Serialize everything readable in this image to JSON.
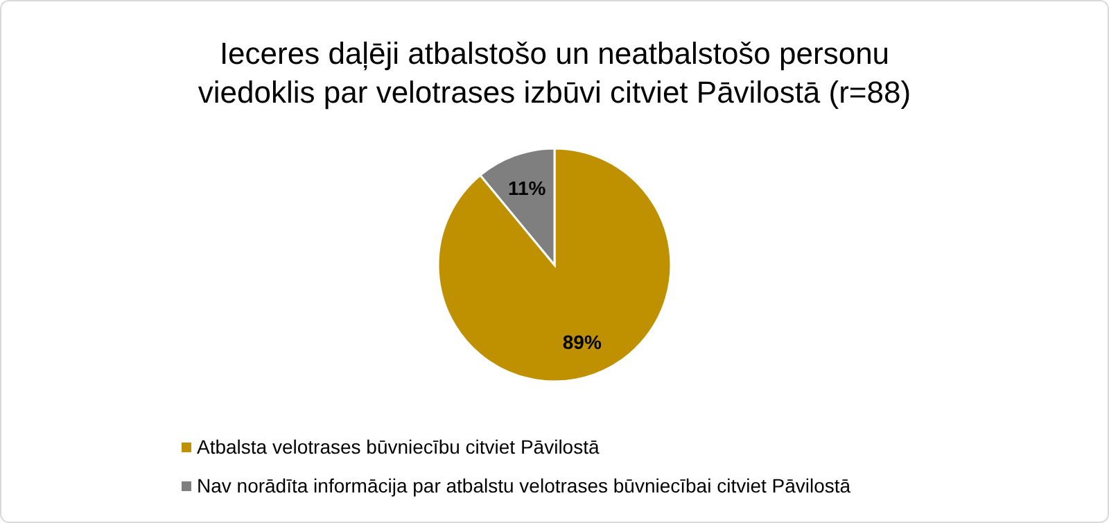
{
  "chart_data": {
    "type": "pie",
    "title": "Ieceres daļēji atbalstošo un neatbalstošo personu viedoklis par velotrases izbūvi citviet Pāvilostā (r=88)",
    "categories": [
      "Atbalsta velotrases būvniecību citviet Pāvilostā",
      "Nav norādīta informācija par atbalstu velotrases būvniecībai citviet Pāvilostā"
    ],
    "values": [
      89,
      11
    ],
    "colors": [
      "#bf9000",
      "#7f7f7f"
    ],
    "value_labels": [
      "89%",
      "11%"
    ],
    "legend": "bottom"
  }
}
